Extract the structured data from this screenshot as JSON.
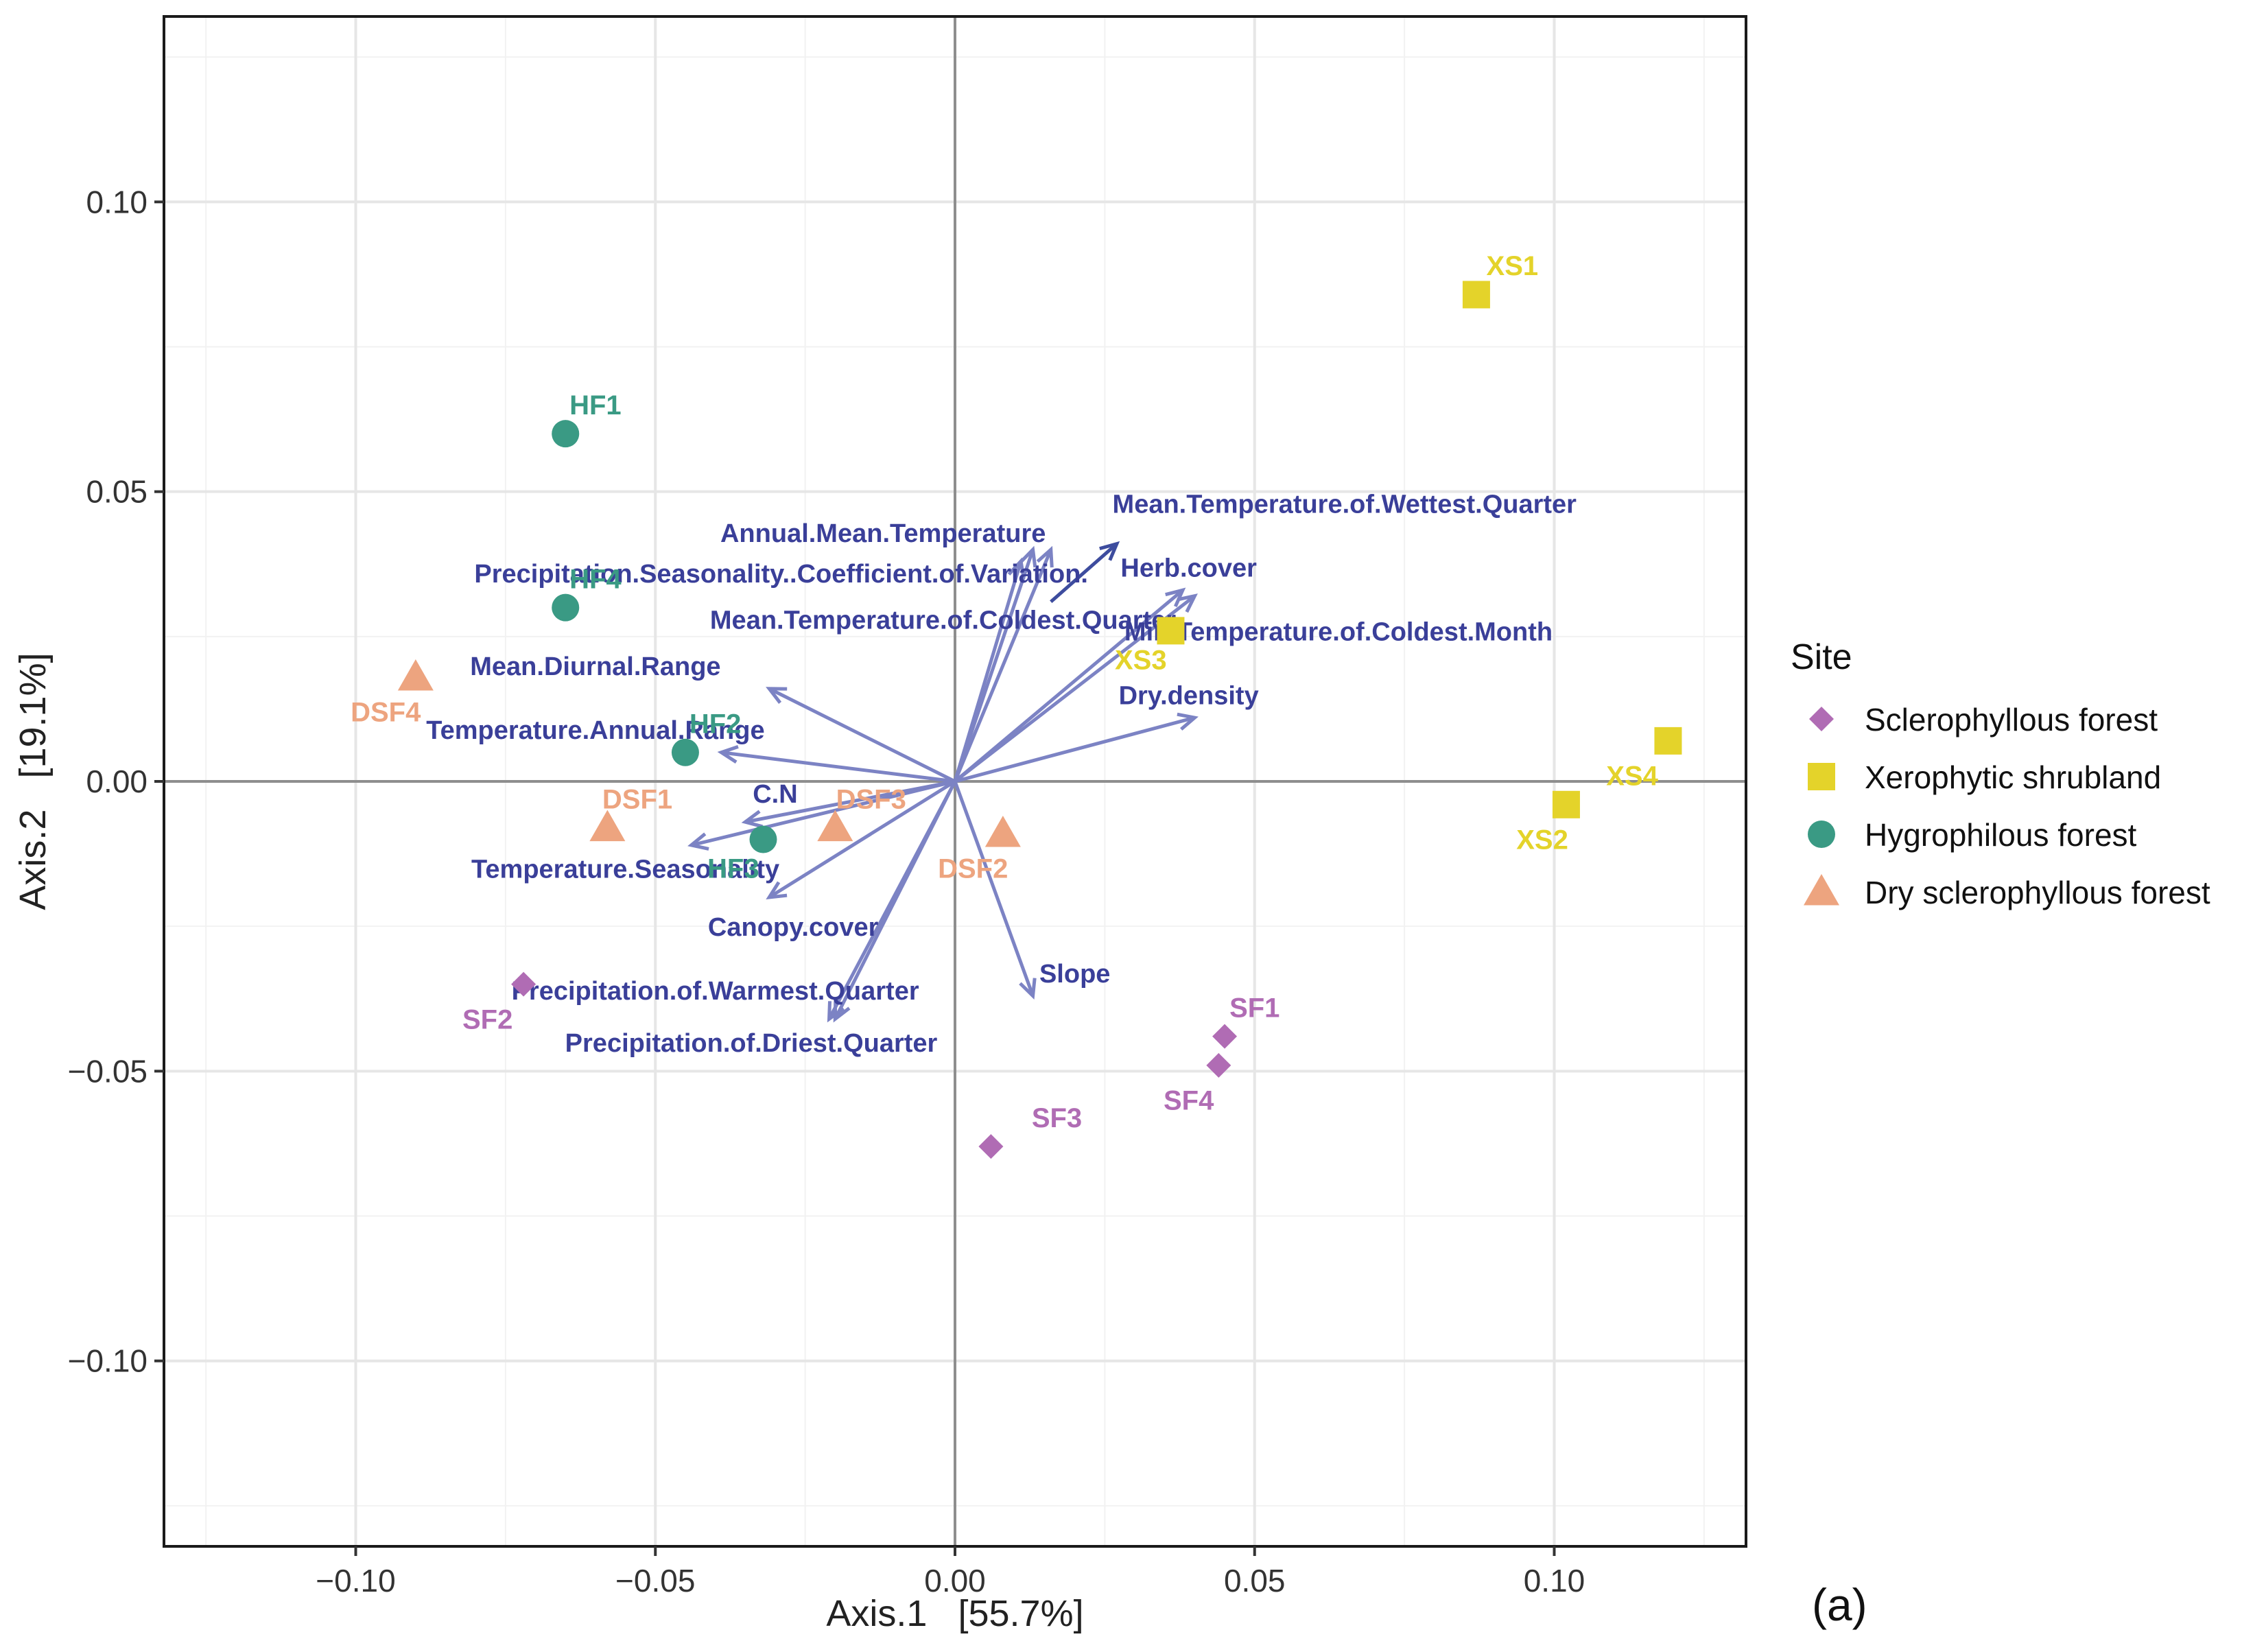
{
  "panel_label": "(a)",
  "colors": {
    "sclerophyllous": "#B06CB4",
    "xerophytic": "#E4D32A",
    "hygrophilous": "#3A9A84",
    "dry_sclerophyllous": "#EDA47F",
    "arrow": "#7C83C4",
    "arrow_dark": "#3D4C9E",
    "arrow_label": "#3A3F99",
    "axis_zero": "#8E8E8E",
    "grid_major": "#E6E6E6",
    "grid_minor": "#F2F2F2"
  },
  "chart_data": {
    "type": "scatter",
    "title": "",
    "xlabel": "Axis.1   [55.7%]",
    "ylabel": "Axis.2   [19.1%]",
    "xlim": [
      -0.132,
      0.132
    ],
    "ylim": [
      -0.132,
      0.132
    ],
    "xticks": [
      -0.1,
      -0.05,
      0.0,
      0.05,
      0.1
    ],
    "yticks": [
      -0.1,
      -0.05,
      0.0,
      0.05,
      0.1
    ],
    "xtick_labels": [
      "−0.10",
      "−0.05",
      "0.00",
      "0.05",
      "0.10"
    ],
    "ytick_labels": [
      "−0.10",
      "−0.05",
      "0.00",
      "0.05",
      "0.10"
    ],
    "grid": true,
    "legend": {
      "title": "Site",
      "placement": "right",
      "entries": [
        {
          "name": "Sclerophyllous forest",
          "shape": "diamond",
          "color_key": "sclerophyllous"
        },
        {
          "name": "Xerophytic shrubland",
          "shape": "square",
          "color_key": "xerophytic"
        },
        {
          "name": "Hygrophilous forest",
          "shape": "circle",
          "color_key": "hygrophilous"
        },
        {
          "name": "Dry sclerophyllous forest",
          "shape": "triangle",
          "color_key": "dry_sclerophyllous"
        }
      ]
    },
    "series": [
      {
        "name": "Sclerophyllous forest",
        "shape": "diamond",
        "color_key": "sclerophyllous",
        "points": [
          {
            "label": "SF1",
            "x": 0.045,
            "y": -0.044,
            "label_dx": 0.005,
            "label_dy": 0.005
          },
          {
            "label": "SF2",
            "x": -0.072,
            "y": -0.035,
            "label_dx": -0.006,
            "label_dy": -0.006
          },
          {
            "label": "SF3",
            "x": 0.006,
            "y": -0.063,
            "label_dx": 0.011,
            "label_dy": 0.005
          },
          {
            "label": "SF4",
            "x": 0.044,
            "y": -0.049,
            "label_dx": -0.005,
            "label_dy": -0.006
          }
        ]
      },
      {
        "name": "Xerophytic shrubland",
        "shape": "square",
        "color_key": "xerophytic",
        "points": [
          {
            "label": "XS1",
            "x": 0.087,
            "y": 0.084,
            "label_dx": 0.006,
            "label_dy": 0.005
          },
          {
            "label": "XS2",
            "x": 0.102,
            "y": -0.004,
            "label_dx": -0.004,
            "label_dy": -0.006
          },
          {
            "label": "XS3",
            "x": 0.036,
            "y": 0.026,
            "label_dx": -0.005,
            "label_dy": -0.005
          },
          {
            "label": "XS4",
            "x": 0.119,
            "y": 0.007,
            "label_dx": -0.006,
            "label_dy": -0.006
          }
        ]
      },
      {
        "name": "Hygrophilous forest",
        "shape": "circle",
        "color_key": "hygrophilous",
        "points": [
          {
            "label": "HF1",
            "x": -0.065,
            "y": 0.06,
            "label_dx": 0.005,
            "label_dy": 0.005
          },
          {
            "label": "HF2",
            "x": -0.045,
            "y": 0.005,
            "label_dx": 0.005,
            "label_dy": 0.005
          },
          {
            "label": "HF3",
            "x": -0.032,
            "y": -0.01,
            "label_dx": -0.005,
            "label_dy": -0.005
          },
          {
            "label": "HF4",
            "x": -0.065,
            "y": 0.03,
            "label_dx": 0.005,
            "label_dy": 0.005
          }
        ]
      },
      {
        "name": "Dry sclerophyllous forest",
        "shape": "triangle",
        "color_key": "dry_sclerophyllous",
        "points": [
          {
            "label": "DSF1",
            "x": -0.058,
            "y": -0.008,
            "label_dx": 0.005,
            "label_dy": 0.005
          },
          {
            "label": "DSF2",
            "x": 0.008,
            "y": -0.009,
            "label_dx": -0.005,
            "label_dy": -0.006
          },
          {
            "label": "DSF3",
            "x": -0.02,
            "y": -0.008,
            "label_dx": 0.006,
            "label_dy": 0.005
          },
          {
            "label": "DSF4",
            "x": -0.09,
            "y": 0.018,
            "label_dx": -0.005,
            "label_dy": -0.006
          }
        ]
      }
    ],
    "arrows": [
      {
        "label": "Mean.Temperature.of.Wettest.Quarter",
        "x": 0.027,
        "y": 0.041,
        "label_x": 0.065,
        "label_y": 0.048,
        "tail_x": 0.016,
        "tail_y": 0.031,
        "dark": true
      },
      {
        "label": "Annual.Mean.Temperature",
        "x": 0.013,
        "y": 0.04,
        "label_x": -0.012,
        "label_y": 0.043
      },
      {
        "label": "Precipitation.Seasonality..Coefficient.of.Variation.",
        "x": 0.016,
        "y": 0.04,
        "label_x": -0.029,
        "label_y": 0.036
      },
      {
        "label": "Mean.Temperature.of.Coldest.Quarter",
        "x": 0.011,
        "y": 0.038,
        "label_x": -0.002,
        "label_y": 0.028
      },
      {
        "label": "Herb.cover",
        "x": 0.038,
        "y": 0.033,
        "label_x": 0.039,
        "label_y": 0.037
      },
      {
        "label": "Min.Temperature.of.Coldest.Month",
        "x": 0.04,
        "y": 0.032,
        "label_x": 0.064,
        "label_y": 0.026
      },
      {
        "label": "Dry.density",
        "x": 0.04,
        "y": 0.011,
        "label_x": 0.039,
        "label_y": 0.015
      },
      {
        "label": "Mean.Diurnal.Range",
        "x": -0.031,
        "y": 0.016,
        "label_x": -0.06,
        "label_y": 0.02
      },
      {
        "label": "Temperature.Annual.Range",
        "x": -0.039,
        "y": 0.005,
        "label_x": -0.06,
        "label_y": 0.009
      },
      {
        "label": "C.N",
        "x": -0.035,
        "y": -0.007,
        "label_x": -0.03,
        "label_y": -0.002
      },
      {
        "label": "Temperature.Seasonality",
        "x": -0.044,
        "y": -0.011,
        "label_x": -0.055,
        "label_y": -0.015
      },
      {
        "label": "Canopy.cover",
        "x": -0.031,
        "y": -0.02,
        "label_x": -0.027,
        "label_y": -0.025
      },
      {
        "label": "Precipitation.of.Warmest.Quarter",
        "x": -0.021,
        "y": -0.041,
        "label_x": -0.04,
        "label_y": -0.036
      },
      {
        "label": "Precipitation.of.Driest.Quarter",
        "x": -0.02,
        "y": -0.041,
        "label_x": -0.034,
        "label_y": -0.045
      },
      {
        "label": "Slope",
        "x": 0.013,
        "y": -0.037,
        "label_x": 0.02,
        "label_y": -0.033
      }
    ]
  }
}
